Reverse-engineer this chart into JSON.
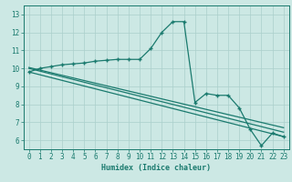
{
  "xlabel": "Humidex (Indice chaleur)",
  "background_color": "#cce8e4",
  "line_color": "#1a7a6e",
  "grid_color": "#aacfcb",
  "xlim": [
    -0.5,
    23.5
  ],
  "ylim": [
    5.5,
    13.5
  ],
  "xticks": [
    0,
    1,
    2,
    3,
    4,
    5,
    6,
    7,
    8,
    9,
    10,
    11,
    12,
    13,
    14,
    15,
    16,
    17,
    18,
    19,
    20,
    21,
    22,
    23
  ],
  "yticks": [
    6,
    7,
    8,
    9,
    10,
    11,
    12,
    13
  ],
  "curve1_x": [
    0,
    1,
    2,
    3,
    4,
    5,
    6,
    7,
    8,
    9,
    10,
    11,
    12,
    13,
    14,
    15,
    16,
    17,
    18,
    19,
    20,
    21,
    22,
    23
  ],
  "curve1_y": [
    9.8,
    10.0,
    10.1,
    10.2,
    10.25,
    10.3,
    10.4,
    10.45,
    10.5,
    10.5,
    10.5,
    11.1,
    12.0,
    12.6,
    12.6,
    8.1,
    8.6,
    8.5,
    8.5,
    7.8,
    6.6,
    5.7,
    6.4,
    6.2
  ],
  "line2_x": [
    0,
    23
  ],
  "line2_y": [
    9.8,
    6.2
  ],
  "line3_x": [
    0,
    23
  ],
  "line3_y": [
    10.0,
    6.45
  ],
  "line4_x": [
    0,
    23
  ],
  "line4_y": [
    10.05,
    6.7
  ],
  "xlabel_fontsize": 6,
  "tick_fontsize": 5.5
}
